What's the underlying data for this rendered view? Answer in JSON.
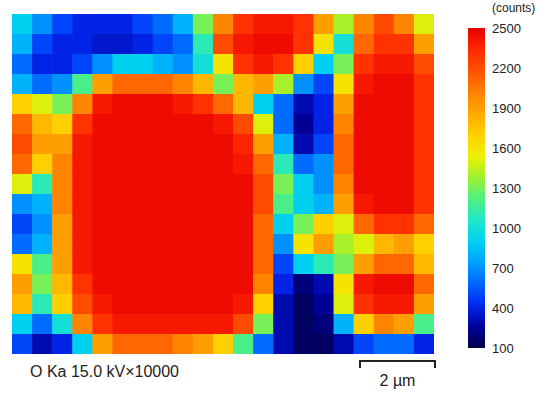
{
  "chart_data": {
    "type": "heatmap",
    "caption": "O Ka 15.0 kV×10000",
    "tick_labels": false,
    "xlim": [
      0,
      11.25
    ],
    "ylim": [
      0,
      9.07
    ],
    "scale_bar": {
      "value": 2,
      "label": "2 µm"
    },
    "colorbar": {
      "title": "(counts)",
      "range": [
        100,
        2500
      ],
      "ticks": [
        100,
        400,
        700,
        1000,
        1300,
        1600,
        1900,
        2200,
        2500
      ]
    },
    "cells": [
      [
        900,
        700,
        500,
        400,
        400,
        400,
        500,
        600,
        800,
        1300,
        2000,
        2300,
        2400,
        2400,
        2300,
        1900,
        1400,
        2000,
        2200,
        2000,
        1500
      ],
      [
        800,
        500,
        400,
        400,
        350,
        350,
        400,
        500,
        600,
        1100,
        2200,
        2400,
        2450,
        2450,
        2300,
        1600,
        1000,
        2100,
        2300,
        2300,
        1900
      ],
      [
        600,
        400,
        400,
        500,
        700,
        900,
        900,
        800,
        700,
        1000,
        1600,
        2300,
        2400,
        2300,
        1700,
        900,
        1300,
        2300,
        2400,
        2400,
        2200
      ],
      [
        800,
        600,
        700,
        1200,
        1900,
        2100,
        2100,
        2100,
        2000,
        1800,
        1300,
        1800,
        1900,
        1400,
        700,
        500,
        1600,
        2400,
        2450,
        2450,
        2300
      ],
      [
        1700,
        1500,
        1300,
        2000,
        2400,
        2450,
        2450,
        2450,
        2400,
        2300,
        2100,
        1800,
        900,
        600,
        300,
        400,
        1900,
        2450,
        2450,
        2450,
        2300
      ],
      [
        2100,
        1800,
        1700,
        2300,
        2450,
        2450,
        2450,
        2450,
        2450,
        2450,
        2400,
        2200,
        1500,
        600,
        250,
        400,
        2000,
        2450,
        2450,
        2450,
        2300
      ],
      [
        2200,
        1900,
        1900,
        2400,
        2450,
        2450,
        2450,
        2450,
        2450,
        2450,
        2450,
        2350,
        1900,
        800,
        300,
        500,
        2100,
        2450,
        2450,
        2450,
        2300
      ],
      [
        2100,
        1700,
        2000,
        2400,
        2450,
        2450,
        2450,
        2450,
        2450,
        2450,
        2450,
        2400,
        2100,
        1100,
        600,
        700,
        2100,
        2450,
        2450,
        2450,
        2300
      ],
      [
        1500,
        1100,
        2000,
        2400,
        2450,
        2450,
        2450,
        2450,
        2450,
        2450,
        2450,
        2450,
        2200,
        1300,
        900,
        700,
        2000,
        2450,
        2450,
        2450,
        2300
      ],
      [
        700,
        800,
        2000,
        2400,
        2450,
        2450,
        2450,
        2450,
        2450,
        2450,
        2450,
        2450,
        2200,
        1200,
        900,
        800,
        1900,
        2400,
        2450,
        2450,
        2300
      ],
      [
        500,
        700,
        1900,
        2400,
        2450,
        2450,
        2450,
        2450,
        2450,
        2450,
        2450,
        2450,
        2100,
        900,
        1300,
        1700,
        1500,
        2100,
        2300,
        2300,
        2100
      ],
      [
        600,
        800,
        1900,
        2400,
        2450,
        2450,
        2450,
        2450,
        2450,
        2450,
        2450,
        2450,
        2100,
        700,
        1600,
        1900,
        1400,
        1500,
        1800,
        1900,
        1700
      ],
      [
        1600,
        1200,
        1900,
        2400,
        2450,
        2450,
        2450,
        2450,
        2450,
        2450,
        2450,
        2450,
        2100,
        500,
        900,
        1100,
        1300,
        1900,
        2100,
        2100,
        1800
      ],
      [
        1900,
        1300,
        1800,
        2300,
        2450,
        2450,
        2450,
        2450,
        2450,
        2450,
        2450,
        2450,
        2000,
        400,
        200,
        300,
        1600,
        2400,
        2450,
        2450,
        2100
      ],
      [
        1800,
        1100,
        1700,
        2200,
        2400,
        2450,
        2450,
        2450,
        2450,
        2450,
        2450,
        2400,
        1700,
        300,
        150,
        250,
        1500,
        2300,
        2400,
        2400,
        1900
      ],
      [
        900,
        600,
        1000,
        2000,
        2300,
        2400,
        2400,
        2400,
        2400,
        2400,
        2400,
        2200,
        1300,
        300,
        150,
        200,
        800,
        1700,
        2000,
        1900,
        1200
      ],
      [
        500,
        300,
        400,
        900,
        1900,
        2100,
        2100,
        2100,
        2000,
        1900,
        1700,
        1200,
        600,
        300,
        150,
        150,
        300,
        500,
        600,
        600,
        400
      ]
    ]
  }
}
